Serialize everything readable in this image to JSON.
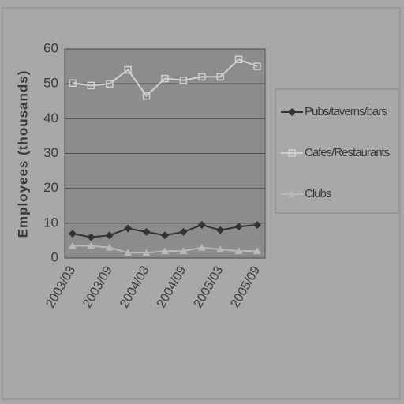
{
  "chart_data": {
    "type": "line",
    "ylabel": "Employees (thousands)",
    "categories": [
      "2003/03",
      null,
      "2003/09",
      null,
      "2004/03",
      null,
      "2004/09",
      null,
      "2005/03",
      null,
      "2005/09"
    ],
    "series": [
      {
        "name": "Pubs/taverns/bars",
        "color": "#333333",
        "marker": "diamond",
        "values": [
          7,
          6,
          6.5,
          8.5,
          7.5,
          6.5,
          7.5,
          9.5,
          8,
          9,
          9.5
        ]
      },
      {
        "name": "Cafes/Restaurants",
        "color": "#d0d0d0",
        "marker": "square",
        "values": [
          50.2,
          49.5,
          50,
          54,
          46.5,
          51.5,
          51,
          52,
          52,
          57,
          55
        ]
      },
      {
        "name": "Clubs",
        "color": "#b8b8b8",
        "marker": "triangle",
        "values": [
          3.5,
          3.5,
          3,
          1.5,
          1.5,
          2,
          2,
          3,
          2.5,
          2,
          2
        ]
      }
    ],
    "ylim": [
      0,
      60
    ],
    "yticks": [
      0,
      10,
      20,
      30,
      40,
      50,
      60
    ],
    "grid": true,
    "legend": "right"
  }
}
